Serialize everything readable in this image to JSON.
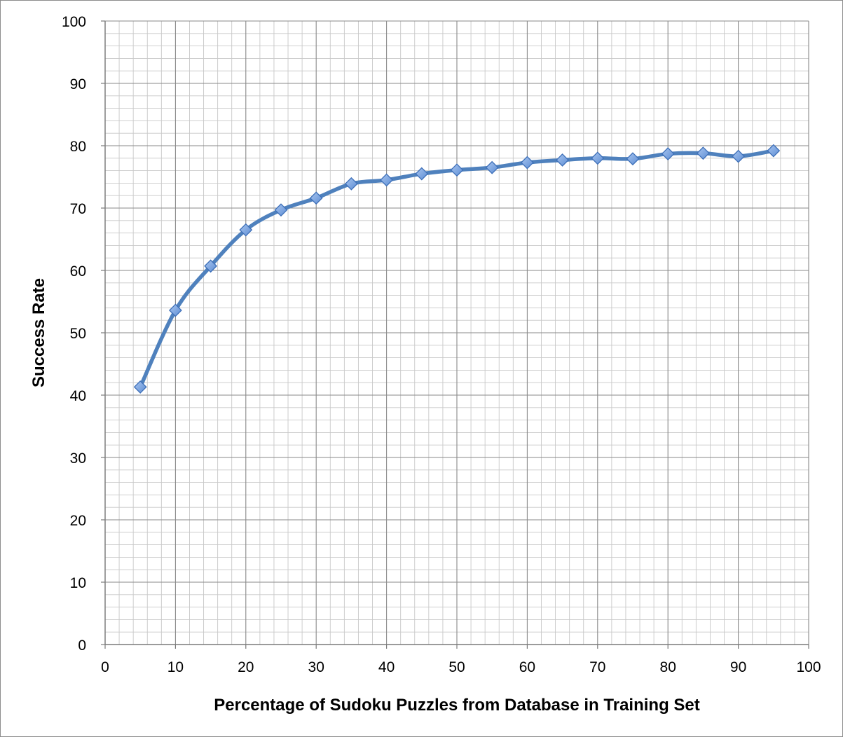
{
  "chart_data": {
    "type": "line",
    "title": "",
    "xlabel": "Percentage of Sudoku Puzzles from Database in Training Set",
    "ylabel": "Success Rate",
    "xlim": [
      0,
      100
    ],
    "ylim": [
      0,
      100
    ],
    "x_ticks": [
      "0",
      "10",
      "20",
      "30",
      "40",
      "50",
      "60",
      "70",
      "80",
      "90",
      "100"
    ],
    "y_ticks": [
      "0",
      "10",
      "20",
      "30",
      "40",
      "50",
      "60",
      "70",
      "80",
      "90",
      "100"
    ],
    "grid": true,
    "legend": "none",
    "line_style": "smooth",
    "marker": "diamond",
    "series_color": "#4f81bd",
    "marker_color": "#7ea6e0",
    "series": [
      {
        "x": [
          5,
          10,
          15,
          20,
          25,
          30,
          35,
          40,
          45,
          50,
          55,
          60,
          65,
          70,
          75,
          80,
          85,
          90,
          95
        ],
        "values": [
          41.3,
          53.6,
          60.7,
          66.5,
          69.7,
          71.6,
          73.9,
          74.5,
          75.5,
          76.1,
          76.5,
          77.3,
          77.7,
          78.0,
          77.9,
          78.7,
          78.8,
          78.3,
          79.2
        ]
      }
    ]
  }
}
